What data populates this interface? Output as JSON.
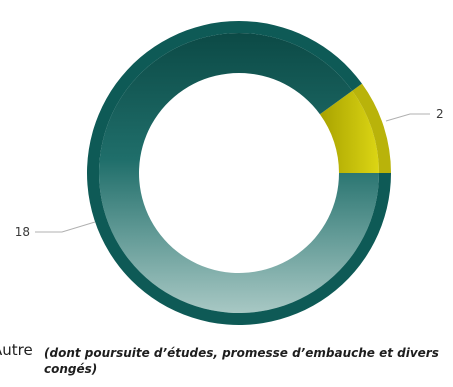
{
  "chart_data": {
    "type": "pie",
    "donut": true,
    "categories": [
      "Autre",
      "Autre (dont poursuite d’études, promesse d’embauche et divers congés)"
    ],
    "values": [
      2,
      18
    ],
    "colors": [
      "#c8c20a",
      "#1f6e6a"
    ],
    "data_labels": [
      "2",
      "18"
    ]
  },
  "legend": {
    "name": "Autre",
    "note": "(dont poursuite d’études, promesse d’embauche et divers congés)"
  }
}
